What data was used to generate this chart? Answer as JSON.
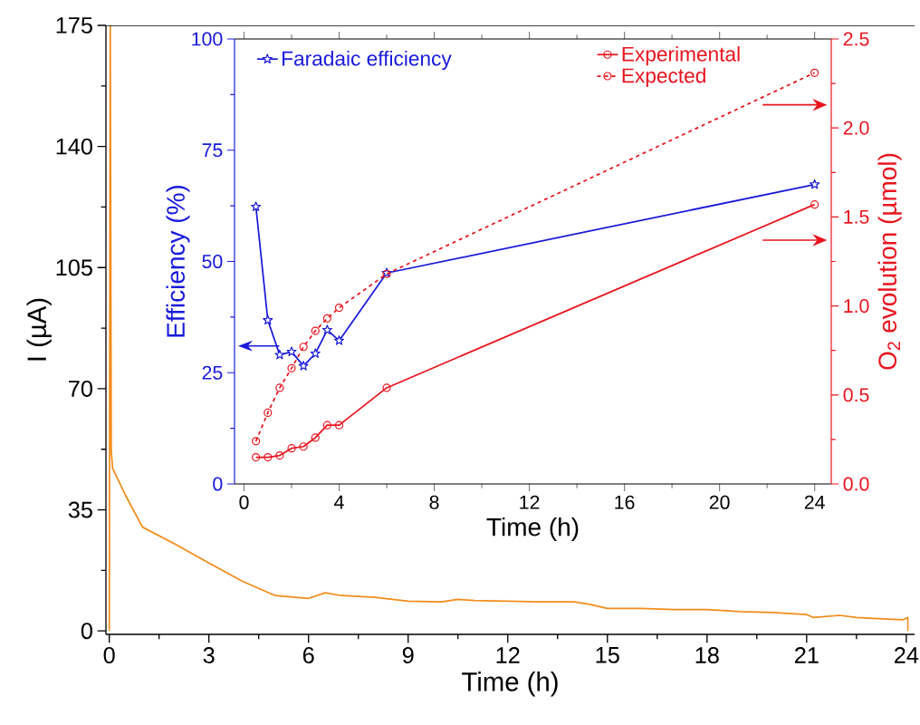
{
  "chart_data": [
    {
      "type": "line",
      "xlabel": "Time (h)",
      "ylabel": "I (µA)",
      "xlim": [
        -0.1,
        24.25
      ],
      "ylim": [
        -1,
        175
      ],
      "xticks": [
        0,
        3,
        6,
        9,
        12,
        15,
        18,
        21,
        24
      ],
      "yticks": [
        0,
        35,
        70,
        105,
        140,
        175
      ],
      "series": [
        {
          "color": "#f28c1a",
          "x": [
            0,
            0.03,
            0.06,
            0.1,
            0.5,
            1,
            2,
            3,
            4,
            5,
            6,
            6.5,
            7,
            8,
            9,
            10,
            10.5,
            11,
            12,
            13,
            14,
            14.5,
            15,
            16,
            17,
            18,
            19,
            20,
            21,
            21.2,
            22,
            22.5,
            23,
            23.9,
            24.05,
            24.05
          ],
          "values": [
            0,
            175,
            52,
            47,
            39,
            30,
            25,
            19.6,
            14.4,
            10.2,
            9.4,
            11,
            10.2,
            9.7,
            8.6,
            8.4,
            9.1,
            8.8,
            8.6,
            8.4,
            8.4,
            7.6,
            6.5,
            6.5,
            6.2,
            6.2,
            5.6,
            5.3,
            4.7,
            3.9,
            4.5,
            3.9,
            3.6,
            3.2,
            3.9,
            0
          ]
        }
      ]
    },
    {
      "type": "line",
      "xlabel": "Time (h)",
      "ylabel": "Efficiency (%)",
      "y2label": "O$_{2}$ evolution (µmol)",
      "legend": "top",
      "xlim": [
        -0.4,
        24.7
      ],
      "ylim": [
        0,
        100
      ],
      "y2lim": [
        0,
        2.5
      ],
      "xticks": [
        0,
        4,
        8,
        12,
        16,
        20,
        24
      ],
      "yticks": [
        0,
        25,
        50,
        75,
        100
      ],
      "y2ticks": [
        {
          "value": 0,
          "label": "0.0"
        },
        {
          "value": 0.5,
          "label": "0.5"
        },
        {
          "value": 1,
          "label": "1.0"
        },
        {
          "value": 1.5,
          "label": "1.5"
        },
        {
          "value": 2,
          "label": "2.0"
        },
        {
          "value": 2.5,
          "label": "2.5"
        }
      ],
      "series": [
        {
          "name": "Faradaic efficiency",
          "color": "#1a1adc",
          "marker": "star",
          "axis": "y",
          "x": [
            0.5,
            1,
            1.5,
            2,
            2.5,
            3,
            3.5,
            4,
            6,
            24
          ],
          "values": [
            62.3,
            36.8,
            29.0,
            29.7,
            26.5,
            29.3,
            34.6,
            32.2,
            47.4,
            67.3
          ]
        },
        {
          "name": "Experimental",
          "color": "#e8141e",
          "marker": "circle",
          "axis": "y2",
          "x": [
            0.5,
            1,
            1.5,
            2,
            2.5,
            3,
            3.5,
            4,
            6,
            24
          ],
          "values": [
            0.15,
            0.15,
            0.16,
            0.2,
            0.21,
            0.26,
            0.33,
            0.33,
            0.54,
            1.57
          ]
        },
        {
          "name": "Expected",
          "color": "#e8141e",
          "marker": "circle",
          "line_style": "dashed",
          "axis": "y2",
          "x": [
            0.5,
            1,
            1.5,
            2,
            2.5,
            3,
            3.5,
            4,
            6,
            24
          ],
          "values": [
            0.24,
            0.4,
            0.54,
            0.65,
            0.77,
            0.86,
            0.93,
            0.99,
            1.18,
            2.31
          ]
        }
      ]
    }
  ]
}
